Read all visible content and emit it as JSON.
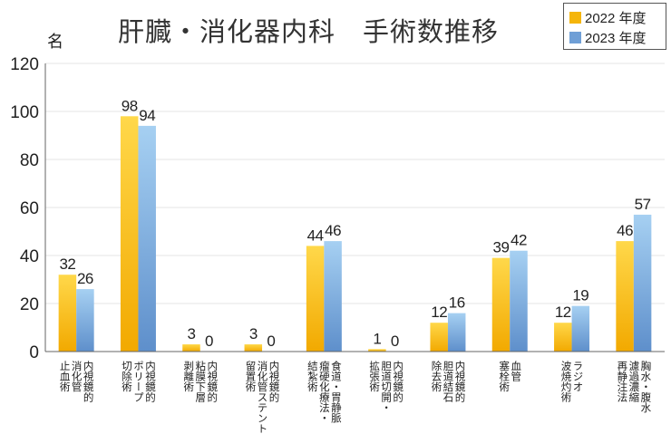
{
  "chart_data": {
    "type": "bar",
    "title": "肝臓・消化器内科　手術数推移",
    "unit_label": "名",
    "ylim": [
      0,
      120
    ],
    "yticks": [
      0,
      20,
      40,
      60,
      80,
      100,
      120
    ],
    "grid": true,
    "legend_position": "top-right",
    "categories": [
      [
        "内視鏡的",
        "消化管",
        "止血術"
      ],
      [
        "内視鏡的",
        "ポリープ",
        "切除術"
      ],
      [
        "内視鏡的",
        "粘膜下層",
        "剥離術"
      ],
      [
        "内視鏡的",
        "消化管ステント",
        "留置術"
      ],
      [
        "食道・胃静脈",
        "瘤硬化療法・",
        "結紮術"
      ],
      [
        "内視鏡的",
        "胆道切開・",
        "拡張術"
      ],
      [
        "内視鏡的",
        "胆道結石",
        "除去術"
      ],
      [
        "血管",
        "塞栓術"
      ],
      [
        "ラジオ",
        "波焼灼術"
      ],
      [
        "胸水・腹水",
        "濾過濃縮",
        "再静注法"
      ]
    ],
    "series": [
      {
        "name": "2022 年度",
        "color": "#f5b50a",
        "values": [
          32,
          98,
          3,
          3,
          44,
          1,
          12,
          39,
          12,
          46
        ]
      },
      {
        "name": "2023 年度",
        "color": "#6f9fd6",
        "values": [
          26,
          94,
          0,
          0,
          46,
          0,
          16,
          42,
          19,
          57
        ]
      }
    ]
  }
}
